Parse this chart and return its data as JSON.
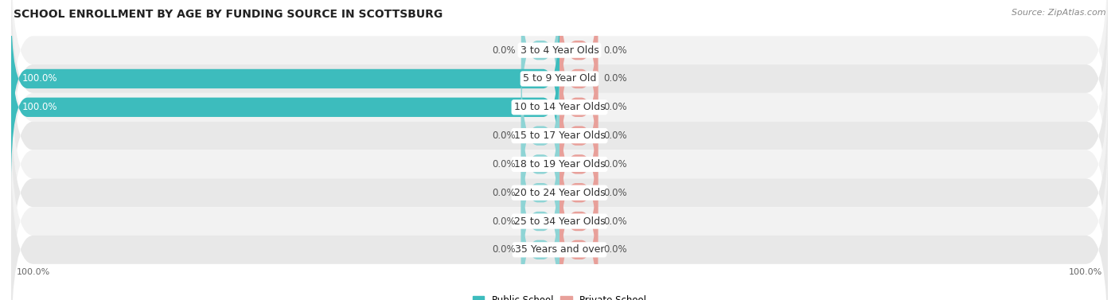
{
  "title": "SCHOOL ENROLLMENT BY AGE BY FUNDING SOURCE IN SCOTTSBURG",
  "source": "Source: ZipAtlas.com",
  "categories": [
    "3 to 4 Year Olds",
    "5 to 9 Year Old",
    "10 to 14 Year Olds",
    "15 to 17 Year Olds",
    "18 to 19 Year Olds",
    "20 to 24 Year Olds",
    "25 to 34 Year Olds",
    "35 Years and over"
  ],
  "public_values": [
    0.0,
    100.0,
    100.0,
    0.0,
    0.0,
    0.0,
    0.0,
    0.0
  ],
  "private_values": [
    0.0,
    0.0,
    0.0,
    0.0,
    0.0,
    0.0,
    0.0,
    0.0
  ],
  "public_color": "#3dbcbd",
  "public_color_light": "#8ed4d5",
  "private_color": "#e8a09a",
  "row_colors": [
    "#f2f2f2",
    "#e8e8e8"
  ],
  "title_fontsize": 10,
  "label_fontsize": 9,
  "value_fontsize": 8.5,
  "axis_label_fontsize": 8,
  "legend_fontsize": 8.5,
  "xlim": [
    -100,
    100
  ],
  "background_color": "#ffffff",
  "stub_size": 7
}
